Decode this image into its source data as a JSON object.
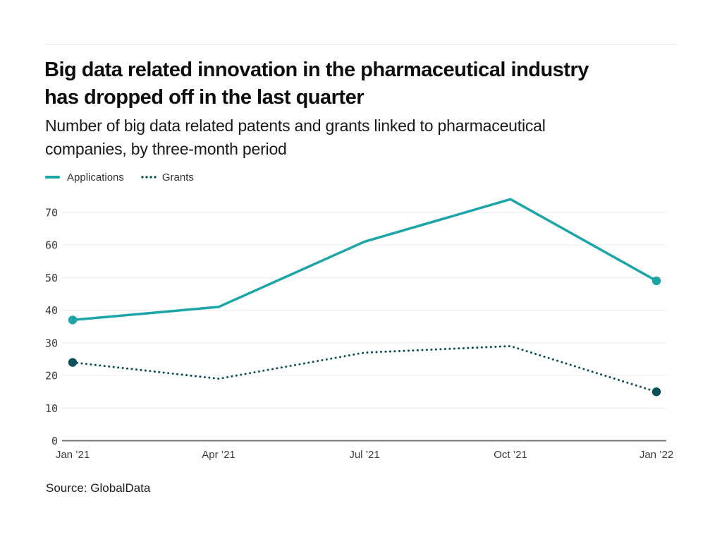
{
  "header": {
    "title_line1": "Big data related innovation in the pharmaceutical industry",
    "title_line2": "has dropped off in the last quarter",
    "subtitle_line1": "Number of big data related patents and grants linked to pharmaceutical",
    "subtitle_line2": "companies, by three-month period"
  },
  "chart_data": {
    "type": "line",
    "title": "Big data related innovation in the pharmaceutical industry has dropped off in the last quarter",
    "subtitle": "Number of big data related patents and grants linked to pharmaceutical companies, by three-month period",
    "categories": [
      "Jan ’21",
      "Apr ’21",
      "Jul ’21",
      "Oct ’21",
      "Jan ’22"
    ],
    "series": [
      {
        "name": "Applications",
        "values": [
          37,
          41,
          61,
          74,
          49
        ],
        "color": "#1ba5a6",
        "line_style": "solid"
      },
      {
        "name": "Grants",
        "values": [
          24,
          19,
          27,
          29,
          15
        ],
        "color": "#0b4f58",
        "line_style": "dotted"
      }
    ],
    "xlabel": "",
    "ylabel": "",
    "ylim": [
      0,
      75
    ],
    "y_ticks": [
      0,
      10,
      20,
      30,
      40,
      50,
      60,
      70
    ],
    "grid": "horizontal",
    "legend_position": "top-left",
    "markers": "first-and-last-point",
    "colors": {
      "gridline": "#ebebeb",
      "axis_baseline": "#707070",
      "tick_text": "#3c3c3c"
    }
  },
  "footer": {
    "source": "Source: GlobalData"
  }
}
